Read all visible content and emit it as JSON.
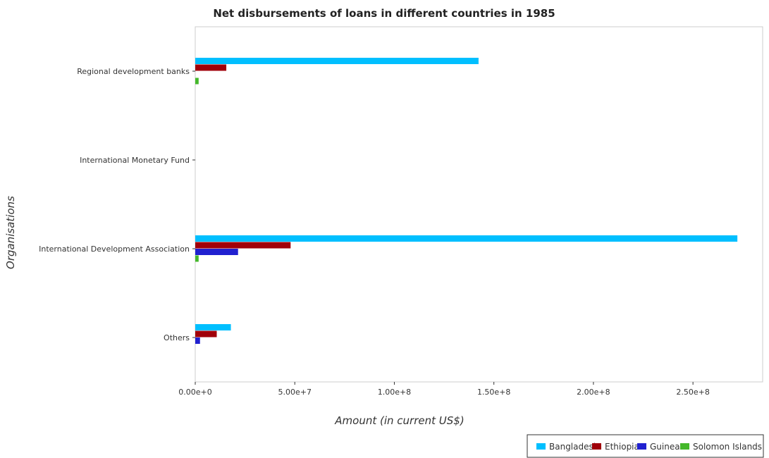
{
  "chart_data": {
    "type": "bar",
    "orientation": "horizontal",
    "title": "Net disbursements of loans in different countries in 1985",
    "xlabel": "Amount (in current US$)",
    "ylabel": "Organisations",
    "categories": [
      "Regional development banks",
      "International Monetary Fund",
      "International Development Association",
      "Others"
    ],
    "series": [
      {
        "name": "Bangladesh",
        "color": "#00bfff",
        "values": [
          142300000,
          0,
          272300000,
          17900000
        ]
      },
      {
        "name": "Ethiopia",
        "color": "#a0000a",
        "values": [
          15600000,
          0,
          47900000,
          10800000
        ]
      },
      {
        "name": "Guinea",
        "color": "#2020d0",
        "values": [
          0,
          0,
          21500000,
          2400000
        ]
      },
      {
        "name": "Solomon Islands",
        "color": "#44b82a",
        "values": [
          1700000,
          0,
          1700000,
          0
        ]
      }
    ],
    "xlim": [
      0,
      285000000
    ],
    "xticks": [
      0,
      50000000,
      100000000,
      150000000,
      200000000,
      250000000
    ],
    "xtick_labels": [
      "0.00e+0",
      "5.00e+7",
      "1.00e+8",
      "1.50e+8",
      "2.00e+8",
      "2.50e+8"
    ],
    "grid": false,
    "legend_position": "bottom-right"
  }
}
